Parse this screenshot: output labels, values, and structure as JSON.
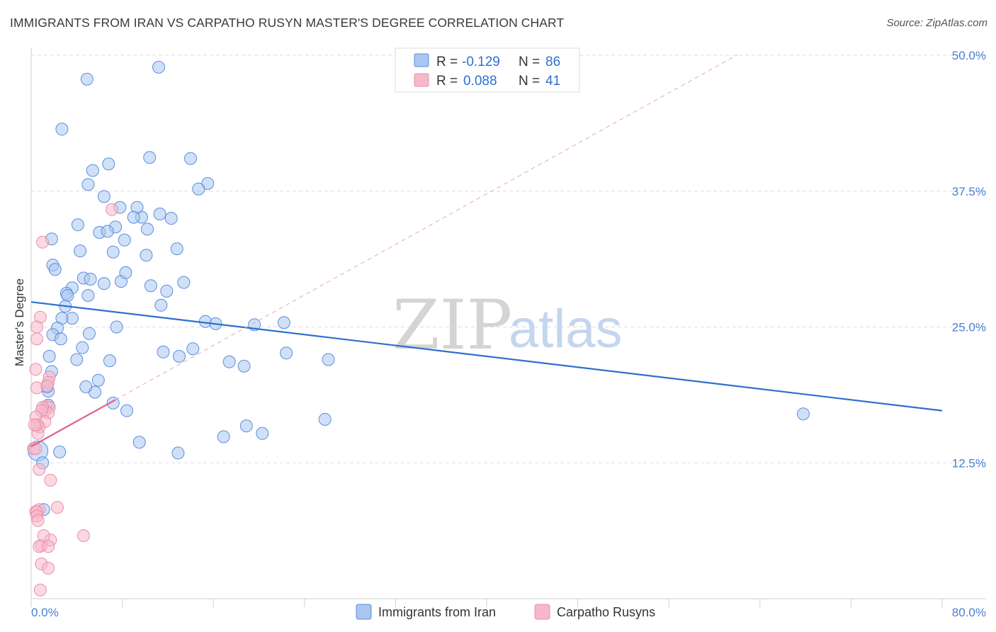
{
  "title": "IMMIGRANTS FROM IRAN VS CARPATHO RUSYN MASTER'S DEGREE CORRELATION CHART",
  "source": "Source: ZipAtlas.com",
  "watermark": {
    "zip": "ZIP",
    "atlas": "atlas"
  },
  "legend": {
    "r_label": "R =",
    "n_label": "N =",
    "rows": [
      {
        "r": "-0.129",
        "n": "86",
        "color": "#a9c6f0",
        "stroke": "#5b8ede"
      },
      {
        "r": "0.088",
        "n": "41",
        "color": "#f7b8cb",
        "stroke": "#e890aa"
      }
    ]
  },
  "chart_data": {
    "type": "scatter",
    "title": "IMMIGRANTS FROM IRAN VS CARPATHO RUSYN MASTER'S DEGREE CORRELATION CHART",
    "xlabel": "",
    "ylabel": "Master's Degree",
    "xlim": [
      0,
      80
    ],
    "ylim": [
      0,
      50
    ],
    "x_tick_labels": [
      "0.0%",
      "80.0%"
    ],
    "y_ticks": [
      12.5,
      25.0,
      37.5,
      50.0
    ],
    "y_tick_labels": [
      "12.5%",
      "25.0%",
      "37.5%",
      "50.0%"
    ],
    "grid": true,
    "legend_position": "top-center",
    "series": [
      {
        "name": "Immigrants from Iran",
        "color": "#a9c6f0",
        "stroke": "#5b8ede",
        "trend": {
          "x": [
            0,
            80
          ],
          "y": [
            27.3,
            17.3
          ],
          "color": "#2e6fd0"
        },
        "x": [
          4.9,
          11.2,
          2.7,
          5.4,
          6.8,
          10.4,
          5.0,
          6.4,
          7.8,
          9.7,
          9.3,
          4.1,
          6.0,
          1.8,
          4.3,
          7.2,
          10.1,
          1.9,
          2.1,
          4.6,
          5.2,
          7.9,
          3.6,
          3.1,
          3.2,
          11.9,
          12.3,
          9.0,
          7.4,
          6.7,
          14.0,
          15.5,
          14.7,
          11.3,
          10.2,
          8.2,
          12.8,
          6.4,
          5.0,
          3.0,
          3.6,
          2.7,
          2.3,
          1.9,
          2.6,
          4.5,
          1.6,
          4.0,
          1.8,
          1.5,
          1.5,
          0.6,
          1.4,
          5.6,
          7.2,
          8.4,
          6.9,
          5.9,
          4.8,
          5.1,
          7.5,
          10.5,
          8.3,
          13.4,
          11.4,
          15.3,
          16.2,
          19.6,
          22.2,
          14.2,
          11.6,
          13.0,
          17.4,
          18.7,
          22.4,
          26.1,
          25.8,
          20.3,
          18.9,
          16.9,
          12.9,
          9.5,
          2.5,
          1.0,
          1.1,
          67.8
        ],
        "y": [
          47.8,
          48.9,
          43.2,
          39.4,
          40.0,
          40.6,
          38.1,
          37.0,
          36.0,
          35.1,
          36.0,
          34.4,
          33.7,
          33.1,
          32.0,
          31.9,
          31.6,
          30.7,
          30.3,
          29.5,
          29.4,
          29.2,
          28.6,
          28.1,
          27.9,
          28.3,
          35.0,
          35.1,
          34.2,
          33.8,
          40.5,
          38.2,
          37.7,
          35.4,
          34.0,
          33.0,
          32.2,
          29.0,
          27.9,
          26.9,
          25.8,
          25.8,
          24.9,
          24.3,
          23.9,
          23.1,
          22.3,
          22.0,
          20.9,
          19.1,
          17.8,
          13.6,
          19.5,
          19.0,
          18.0,
          17.3,
          21.9,
          20.1,
          19.5,
          24.4,
          25.0,
          28.8,
          30.0,
          29.1,
          27.0,
          25.5,
          25.3,
          25.2,
          25.4,
          23.0,
          22.7,
          22.3,
          21.8,
          21.4,
          22.6,
          22.0,
          16.5,
          15.2,
          15.9,
          14.9,
          13.4,
          14.4,
          13.5,
          12.5,
          8.2,
          17.0
        ]
      },
      {
        "name": "Carpatho Rusyns",
        "color": "#f7b8cb",
        "stroke": "#e890aa",
        "trend": {
          "x": [
            0,
            7.4
          ],
          "y": [
            14.0,
            18.3
          ],
          "color": "#e0608a"
        },
        "x": [
          1.0,
          7.1,
          0.8,
          0.5,
          0.5,
          0.4,
          0.5,
          1.6,
          1.5,
          1.4,
          1.3,
          1.6,
          1.2,
          1.5,
          1.0,
          0.9,
          1.2,
          0.7,
          0.6,
          0.4,
          0.5,
          0.3,
          0.2,
          0.4,
          0.7,
          0.7,
          0.4,
          0.5,
          0.5,
          0.6,
          1.7,
          1.7,
          2.3,
          0.9,
          1.1,
          0.9,
          4.6,
          0.7,
          1.5,
          1.5,
          0.8
        ],
        "y": [
          32.8,
          35.8,
          25.9,
          25.0,
          23.9,
          21.1,
          19.4,
          20.4,
          19.9,
          19.6,
          17.7,
          17.6,
          17.3,
          17.1,
          17.6,
          17.3,
          16.3,
          15.8,
          15.2,
          16.7,
          16.0,
          16.0,
          13.8,
          13.8,
          11.9,
          8.2,
          8.0,
          8.0,
          7.6,
          7.2,
          10.9,
          5.4,
          8.4,
          4.9,
          5.8,
          3.2,
          5.8,
          4.8,
          4.8,
          2.8,
          0.8
        ]
      }
    ]
  }
}
